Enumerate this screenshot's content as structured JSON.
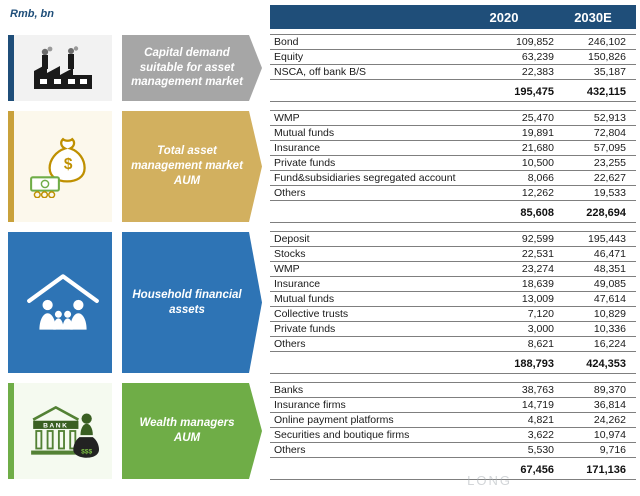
{
  "header": {
    "unit": "Rmb, bn",
    "columns": [
      "2020",
      "2030E"
    ]
  },
  "watermark": "LONG",
  "colors": {
    "header_bar": "#1F4E79",
    "line": "#7f7f7f"
  },
  "sections": [
    {
      "id": "capital-demand",
      "label": "Capital demand suitable for asset management market",
      "icon": "factory-icon",
      "colors": {
        "label": "#A6A6A6",
        "icon_bg": "#F2F2F2",
        "icon_accent": "#1F4E79"
      },
      "rows": [
        {
          "label": "Bond",
          "v2020": "109,852",
          "v2030": "246,102"
        },
        {
          "label": "Equity",
          "v2020": "63,239",
          "v2030": "150,826"
        },
        {
          "label": "NSCA, off bank B/S",
          "v2020": "22,383",
          "v2030": "35,187"
        }
      ],
      "total": {
        "v2020": "195,475",
        "v2030": "432,115"
      }
    },
    {
      "id": "total-aum",
      "label": "Total asset management market AUM",
      "icon": "money-bag-icon",
      "colors": {
        "label": "#D2B05F",
        "icon_bg": "#FCF8EC",
        "icon_accent": "#C9A13B"
      },
      "rows": [
        {
          "label": "WMP",
          "v2020": "25,470",
          "v2030": "52,913"
        },
        {
          "label": "Mutual funds",
          "v2020": "19,891",
          "v2030": "72,804"
        },
        {
          "label": "Insurance",
          "v2020": "21,680",
          "v2030": "57,095"
        },
        {
          "label": "Private funds",
          "v2020": "10,500",
          "v2030": "23,255"
        },
        {
          "label": "Fund&subsidiaries segregated account",
          "v2020": "8,066",
          "v2030": "22,627"
        },
        {
          "label": "Others",
          "v2020": "12,262",
          "v2030": "19,533"
        }
      ],
      "total": {
        "v2020": "85,608",
        "v2030": "228,694"
      }
    },
    {
      "id": "household-assets",
      "label": "Household financial assets",
      "icon": "household-icon",
      "colors": {
        "label": "#2E74B5",
        "icon_bg": "#2E74B5",
        "icon_accent": "#2E74B5"
      },
      "rows": [
        {
          "label": "Deposit",
          "v2020": "92,599",
          "v2030": "195,443"
        },
        {
          "label": "Stocks",
          "v2020": "22,531",
          "v2030": "46,471"
        },
        {
          "label": "WMP",
          "v2020": "23,274",
          "v2030": "48,351"
        },
        {
          "label": "Insurance",
          "v2020": "18,639",
          "v2030": "49,085"
        },
        {
          "label": "Mutual funds",
          "v2020": "13,009",
          "v2030": "47,614"
        },
        {
          "label": "Collective trusts",
          "v2020": "7,120",
          "v2030": "10,829"
        },
        {
          "label": "Private funds",
          "v2020": "3,000",
          "v2030": "10,336"
        },
        {
          "label": "Others",
          "v2020": "8,621",
          "v2030": "16,224"
        }
      ],
      "total": {
        "v2020": "188,793",
        "v2030": "424,353"
      }
    },
    {
      "id": "wealth-managers-aum",
      "label": "Wealth managers AUM",
      "icon": "bank-icon",
      "colors": {
        "label": "#6FAD47",
        "icon_bg": "#F5FAF0",
        "icon_accent": "#6FAD47"
      },
      "rows": [
        {
          "label": "Banks",
          "v2020": "38,763",
          "v2030": "89,370"
        },
        {
          "label": "Insurance firms",
          "v2020": "14,719",
          "v2030": "36,814"
        },
        {
          "label": "Online payment platforms",
          "v2020": "4,821",
          "v2030": "24,262"
        },
        {
          "label": "Securities and boutique firms",
          "v2020": "3,622",
          "v2030": "10,974"
        },
        {
          "label": "Others",
          "v2020": "5,530",
          "v2030": "9,716"
        }
      ],
      "total": {
        "v2020": "67,456",
        "v2030": "171,136"
      }
    }
  ],
  "chart_data": {
    "type": "table",
    "title": "Rmb, bn",
    "categories": [
      "2020",
      "2030E"
    ],
    "series": [
      {
        "name": "Capital demand suitable for asset management market",
        "rows": {
          "Bond": [
            109852,
            246102
          ],
          "Equity": [
            63239,
            150826
          ],
          "NSCA, off bank B/S": [
            22383,
            35187
          ]
        },
        "total": [
          195475,
          432115
        ]
      },
      {
        "name": "Total asset management market AUM",
        "rows": {
          "WMP": [
            25470,
            52913
          ],
          "Mutual funds": [
            19891,
            72804
          ],
          "Insurance": [
            21680,
            57095
          ],
          "Private funds": [
            10500,
            23255
          ],
          "Fund&subsidiaries segregated account": [
            8066,
            22627
          ],
          "Others": [
            12262,
            19533
          ]
        },
        "total": [
          85608,
          228694
        ]
      },
      {
        "name": "Household financial assets",
        "rows": {
          "Deposit": [
            92599,
            195443
          ],
          "Stocks": [
            22531,
            46471
          ],
          "WMP": [
            23274,
            48351
          ],
          "Insurance": [
            18639,
            49085
          ],
          "Mutual funds": [
            13009,
            47614
          ],
          "Collective trusts": [
            7120,
            10829
          ],
          "Private funds": [
            3000,
            10336
          ],
          "Others": [
            8621,
            16224
          ]
        },
        "total": [
          188793,
          424353
        ]
      },
      {
        "name": "Wealth managers AUM",
        "rows": {
          "Banks": [
            38763,
            89370
          ],
          "Insurance firms": [
            14719,
            36814
          ],
          "Online payment platforms": [
            4821,
            24262
          ],
          "Securities and boutique firms": [
            3622,
            10974
          ],
          "Others": [
            5530,
            9716
          ]
        },
        "total": [
          67456,
          171136
        ]
      }
    ]
  }
}
